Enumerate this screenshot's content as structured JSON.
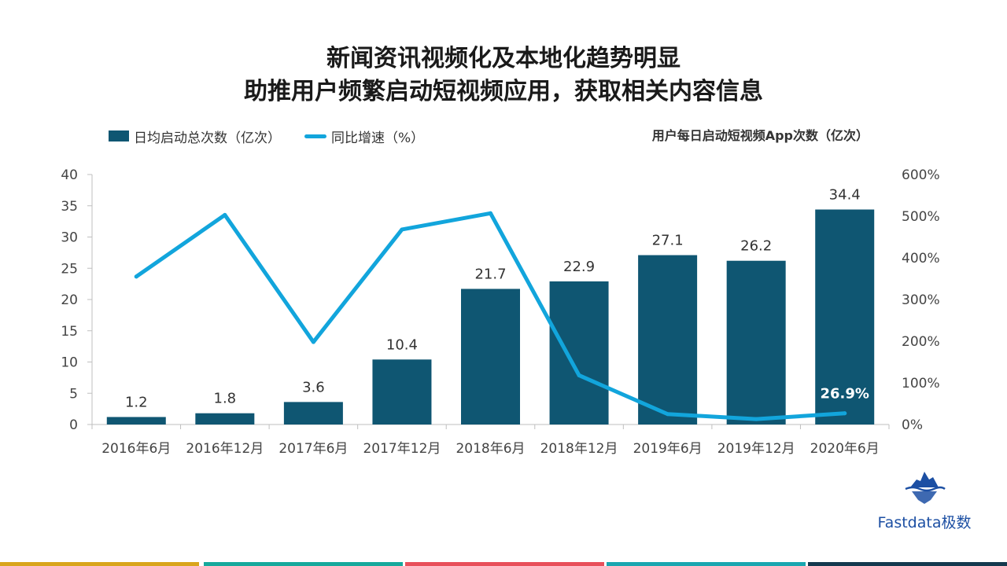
{
  "header": {
    "title_line1": "新闻资讯视频化及本地化趋势明显",
    "title_line2": "助推用户频繁启动短视频应用，获取相关内容信息"
  },
  "legend": {
    "bar_label": "日均启动总次数（亿次）",
    "line_label": "同比增速（%）"
  },
  "chart_subtitle": "用户每日启动短视频App次数（亿次）",
  "brand": {
    "name": "Fastdata极数"
  },
  "colors": {
    "bar": "#0f5672",
    "line": "#12a5dc",
    "stripes": [
      "#d9a51c",
      "#16a99c",
      "#e8505b",
      "#1aa6b0",
      "#14394e"
    ]
  },
  "chart_data": {
    "type": "bar",
    "categories": [
      "2016年6月",
      "2016年12月",
      "2017年6月",
      "2017年12月",
      "2018年6月",
      "2018年12月",
      "2019年6月",
      "2019年12月",
      "2020年6月"
    ],
    "series": [
      {
        "name": "日均启动总次数（亿次）",
        "type": "bar",
        "axis": "left",
        "values": [
          1.2,
          1.8,
          3.6,
          10.4,
          21.7,
          22.9,
          27.1,
          26.2,
          34.4
        ],
        "labels": [
          "1.2",
          "1.8",
          "3.6",
          "10.4",
          "21.7",
          "22.9",
          "27.1",
          "26.2",
          "34.4"
        ]
      },
      {
        "name": "同比增速（%）",
        "type": "line",
        "axis": "right",
        "values": [
          355,
          503,
          198,
          468,
          507,
          118,
          25,
          13,
          26.9
        ],
        "annotation": {
          "index": 8,
          "text": "26.9%"
        }
      }
    ],
    "y_left": {
      "min": 0,
      "max": 40,
      "ticks": [
        "0",
        "5",
        "10",
        "15",
        "20",
        "25",
        "30",
        "35",
        "40"
      ]
    },
    "y_right": {
      "min": 0,
      "max": 600,
      "ticks": [
        "0%",
        "100%",
        "200%",
        "300%",
        "400%",
        "500%",
        "600%"
      ]
    },
    "grid": false
  }
}
